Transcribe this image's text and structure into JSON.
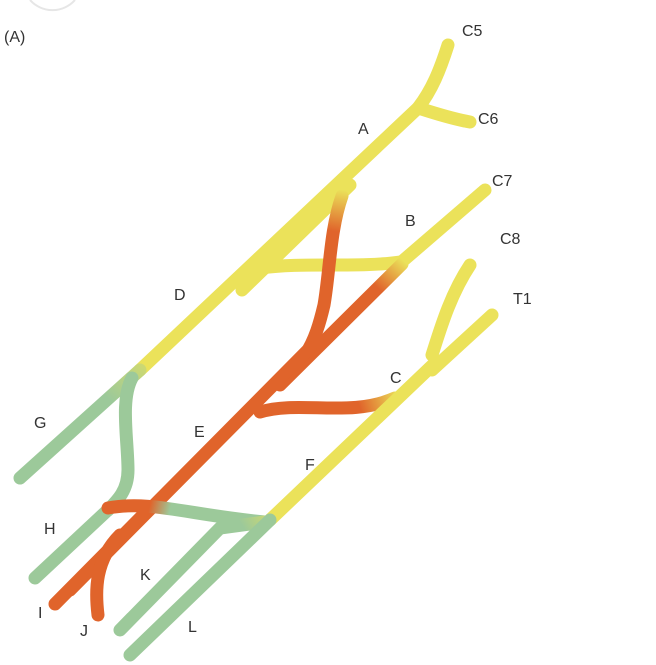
{
  "panel_label": "(A)",
  "roots": {
    "c5": "C5",
    "c6": "C6",
    "c7": "C7",
    "c8": "C8",
    "t1": "T1"
  },
  "segments": {
    "a": "A",
    "b": "B",
    "c": "C",
    "d": "D",
    "e": "E",
    "f": "F"
  },
  "branches": {
    "g": "G",
    "h": "H",
    "i": "I",
    "j": "J",
    "k": "K",
    "l": "L"
  },
  "colors": {
    "yellow": "#ebe25a",
    "orange": "#e0642b",
    "green": "#9cc99a"
  }
}
